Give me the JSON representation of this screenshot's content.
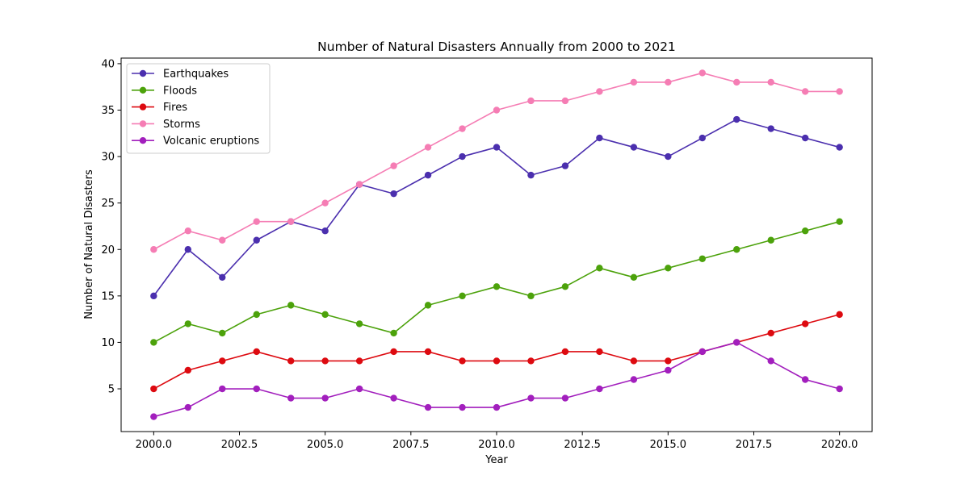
{
  "chart_data": {
    "type": "line",
    "title": "Number of Natural Disasters Annually from 2000 to 2021",
    "xlabel": "Year",
    "ylabel": "Number of Natural Disasters",
    "xlim": [
      1999.05,
      2020.95
    ],
    "ylim": [
      0.4,
      40.6
    ],
    "xticks": [
      2000,
      2002.5,
      2005,
      2007.5,
      2010,
      2012.5,
      2015,
      2017.5,
      2020
    ],
    "xtick_labels": [
      "2000.0",
      "2002.5",
      "2005.0",
      "2007.5",
      "2010.0",
      "2012.5",
      "2015.0",
      "2017.5",
      "2020.0"
    ],
    "yticks": [
      5,
      10,
      15,
      20,
      25,
      30,
      35,
      40
    ],
    "ytick_labels": [
      "5",
      "10",
      "15",
      "20",
      "25",
      "30",
      "35",
      "40"
    ],
    "grid": false,
    "legend_position": "top-left",
    "x": [
      2000,
      2001,
      2002,
      2003,
      2004,
      2005,
      2006,
      2007,
      2008,
      2009,
      2010,
      2011,
      2012,
      2013,
      2014,
      2015,
      2016,
      2017,
      2018,
      2019,
      2020
    ],
    "series": [
      {
        "name": "Earthquakes",
        "color": "#4b2fae",
        "values": [
          15,
          20,
          17,
          21,
          23,
          22,
          27,
          26,
          28,
          30,
          31,
          28,
          29,
          32,
          31,
          30,
          32,
          34,
          33,
          32,
          31
        ]
      },
      {
        "name": "Floods",
        "color": "#4ca20b",
        "values": [
          10,
          12,
          11,
          13,
          14,
          13,
          12,
          11,
          14,
          15,
          16,
          15,
          16,
          18,
          17,
          18,
          19,
          20,
          21,
          22,
          23
        ]
      },
      {
        "name": "Fires",
        "color": "#dd0a10",
        "values": [
          5,
          7,
          8,
          9,
          8,
          8,
          8,
          9,
          9,
          8,
          8,
          8,
          9,
          9,
          8,
          8,
          9,
          10,
          11,
          12,
          13
        ]
      },
      {
        "name": "Storms",
        "color": "#f57db4",
        "values": [
          20,
          22,
          21,
          23,
          23,
          25,
          27,
          29,
          31,
          33,
          35,
          36,
          36,
          37,
          38,
          38,
          39,
          38,
          38,
          37,
          37
        ]
      },
      {
        "name": "Volcanic eruptions",
        "color": "#a21fbd",
        "values": [
          2,
          3,
          5,
          5,
          4,
          4,
          5,
          4,
          3,
          3,
          3,
          4,
          4,
          5,
          6,
          7,
          9,
          10,
          8,
          6,
          5
        ]
      }
    ]
  }
}
